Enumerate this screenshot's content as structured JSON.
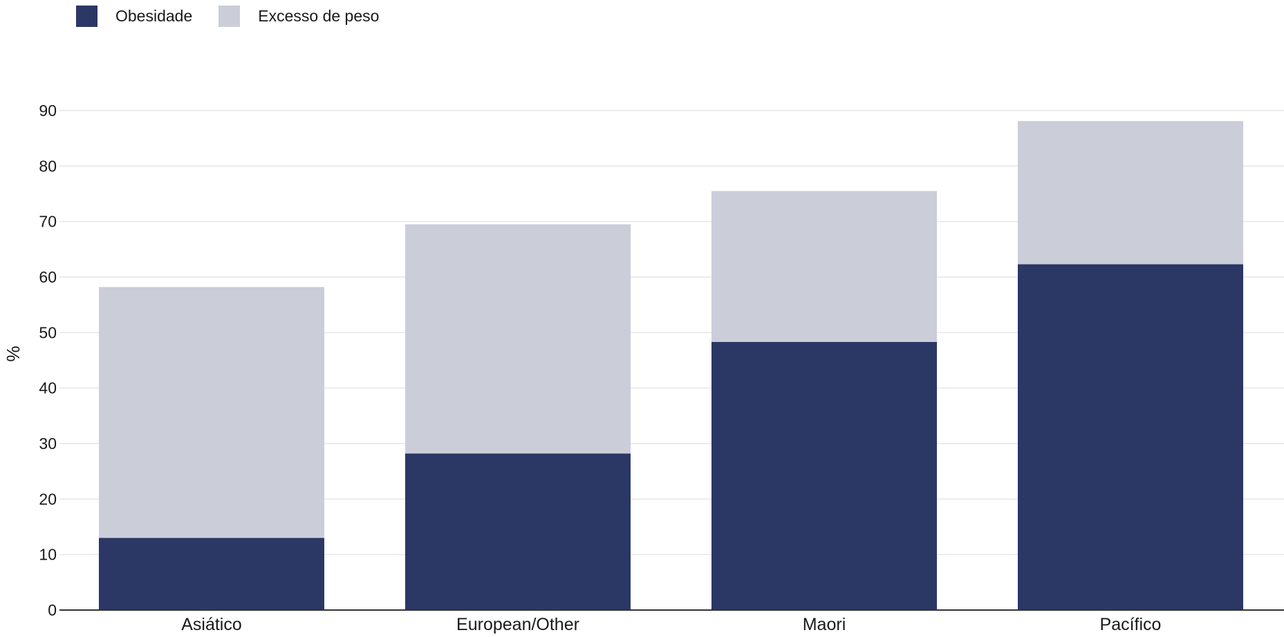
{
  "colors": {
    "obesity": "#2b3764",
    "overweight": "#cbcdd9",
    "grid": "#e6e6e6",
    "axis": "#333333"
  },
  "chart_data": {
    "type": "bar",
    "stacked": true,
    "categories": [
      "Asiático",
      "European/Other",
      "Maori",
      "Pacífico"
    ],
    "series": [
      {
        "name": "Obesidade",
        "values": [
          13,
          28.2,
          48.3,
          62.3
        ]
      },
      {
        "name": "Excesso de peso",
        "values": [
          45.2,
          41.3,
          27.2,
          25.8
        ]
      }
    ],
    "ylabel": "%",
    "xlabel": "",
    "ylim": [
      0,
      90
    ],
    "yticks": [
      0,
      10,
      20,
      30,
      40,
      50,
      60,
      70,
      80,
      90
    ],
    "grid": true,
    "legend_position": "top-left"
  }
}
